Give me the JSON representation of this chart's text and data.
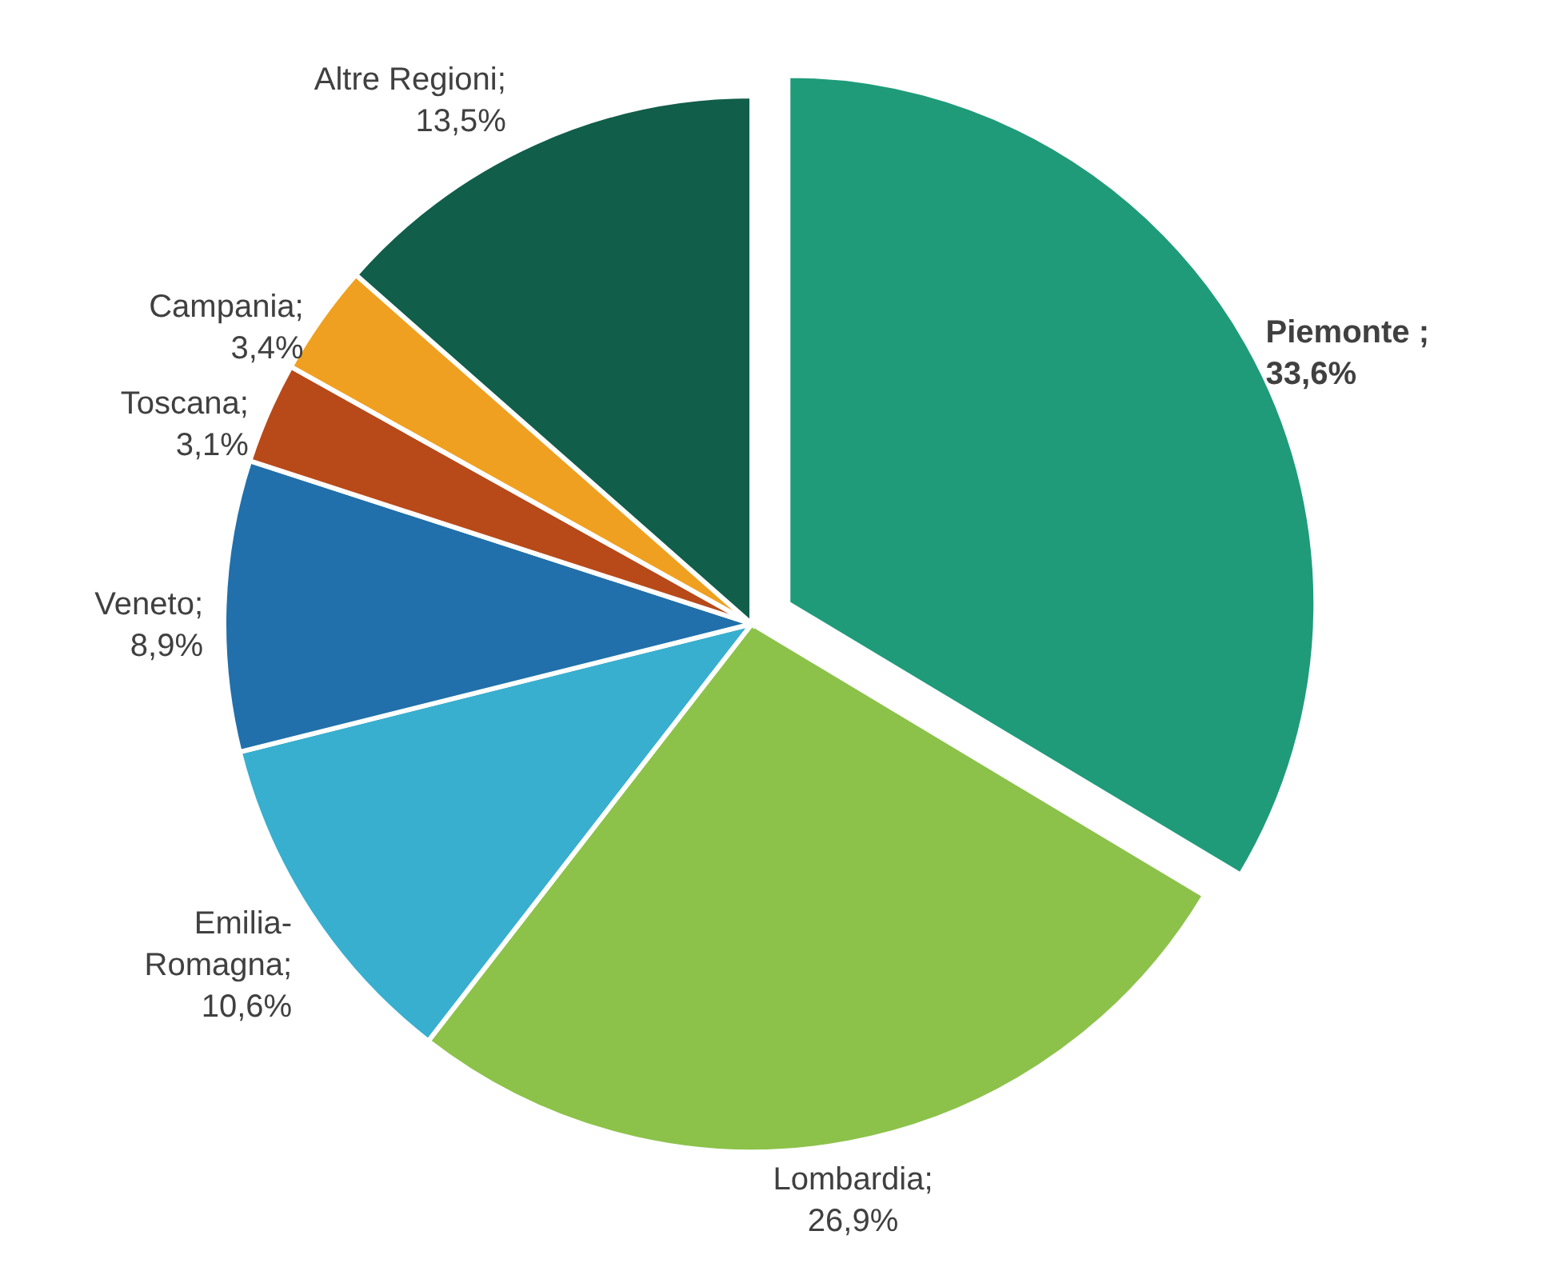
{
  "chart_data": {
    "type": "pie",
    "categories": [
      "Piemonte",
      "Lombardia",
      "Emilia-\nRomagna",
      "Veneto",
      "Toscana",
      "Campania",
      "Altre Regioni"
    ],
    "values": [
      33.6,
      26.9,
      10.6,
      8.9,
      3.1,
      3.4,
      13.5
    ],
    "value_labels": [
      " ;\n33,6%",
      ";\n26,9%",
      ";\n10,6%",
      ";\n8,9%",
      ";\n3,1%",
      ";\n3,4%",
      ";\n13,5%"
    ],
    "colors": [
      "#1f9b7a",
      "#8cc24a",
      "#38afcf",
      "#2170ab",
      "#b84a1a",
      "#f0a020",
      "#115e4a"
    ]
  }
}
